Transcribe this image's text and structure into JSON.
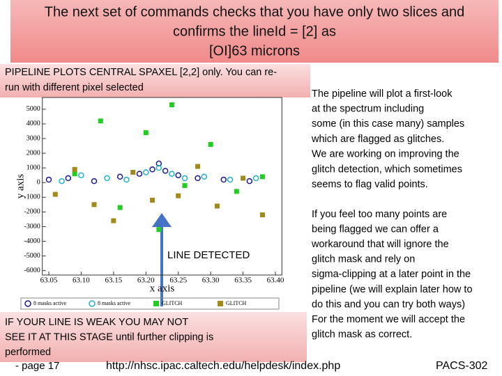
{
  "title_lines": [
    "The next set of commands checks that you have only two slices and",
    "confirms the lineId = [2] as",
    "[OI]63 microns"
  ],
  "plot_note_lines": [
    "PIPELINE PLOTS CENTRAL SPAXEL [2,2] only. You can re-",
    "run with different pixel selected"
  ],
  "right_text_lines": [
    "The pipeline will plot a first-look",
    "at the spectrum including",
    "some (in this case many) samples",
    "which are flagged as glitches.",
    "We are working on improving the",
    "glitch detection, which sometimes",
    "seems to flag valid points."
  ],
  "right_text2_lines": [
    "If you feel too many points are",
    "being flagged we can offer a",
    "workaround that will ignore the",
    "glitch mask and rely on",
    "sigma-clipping at a later point in the",
    "pipeline (we will explain later how to",
    "do this and you can try both ways)",
    "For the moment we will accept the",
    "glitch mask as correct."
  ],
  "warning_lines": [
    "IF YOUR LINE IS WEAK YOU MAY NOT",
    "SEE IT AT THIS STAGE until further clipping is",
    "performed"
  ],
  "footer": {
    "page": "- page 17",
    "url": "http://nhsc.ipac.caltech.edu/helpdesk/index.php",
    "code": "PACS-302"
  },
  "chart_data": {
    "type": "scatter",
    "xlabel": "x axis",
    "ylabel": "y axis",
    "annotation": "LINE DETECTED",
    "xlim": [
      63.04,
      63.41
    ],
    "ylim": [
      -6300,
      5800
    ],
    "xticks": [
      63.05,
      {
        "value": 63.1,
        "label": "63.10"
      },
      63.15,
      {
        "value": 63.2,
        "label": "63.20"
      },
      63.25,
      {
        "value": 63.3,
        "label": "63.30"
      },
      63.35,
      {
        "value": 63.4,
        "label": "63.40"
      }
    ],
    "yticks": [
      5000,
      4000,
      3000,
      2000,
      1000,
      0,
      -1000,
      -2000,
      -3000,
      -4000,
      -5000,
      -6000
    ],
    "series": [
      {
        "name": "8 masks active",
        "color": "#1a1a8a",
        "marker": "circle",
        "x": [
          63.05,
          63.08,
          63.12,
          63.16,
          63.19,
          63.21,
          63.22,
          63.23,
          63.25,
          63.28,
          63.32,
          63.36
        ],
        "y": [
          200,
          300,
          100,
          400,
          600,
          900,
          1300,
          800,
          500,
          300,
          200,
          100
        ]
      },
      {
        "name": "8 masks active",
        "color": "#20b0c8",
        "marker": "circle",
        "x": [
          63.07,
          63.1,
          63.14,
          63.17,
          63.2,
          63.22,
          63.24,
          63.26,
          63.29,
          63.33,
          63.37
        ],
        "y": [
          100,
          500,
          300,
          200,
          700,
          1000,
          600,
          300,
          400,
          200,
          300
        ]
      },
      {
        "name": "GLITCH",
        "color": "#22cc22",
        "marker": "square",
        "x": [
          63.09,
          63.13,
          63.16,
          63.2,
          63.22,
          63.24,
          63.26,
          63.3,
          63.34,
          63.38
        ],
        "y": [
          600,
          4200,
          -1700,
          3400,
          -3200,
          5300,
          -200,
          2600,
          -600,
          400
        ]
      },
      {
        "name": "GLITCH",
        "color": "#a08a1a",
        "marker": "square",
        "x": [
          63.06,
          63.09,
          63.12,
          63.15,
          63.18,
          63.21,
          63.25,
          63.28,
          63.31,
          63.35,
          63.38
        ],
        "y": [
          -800,
          900,
          -1500,
          -2600,
          700,
          -1200,
          -900,
          1100,
          -1600,
          300,
          -2200
        ]
      }
    ]
  }
}
